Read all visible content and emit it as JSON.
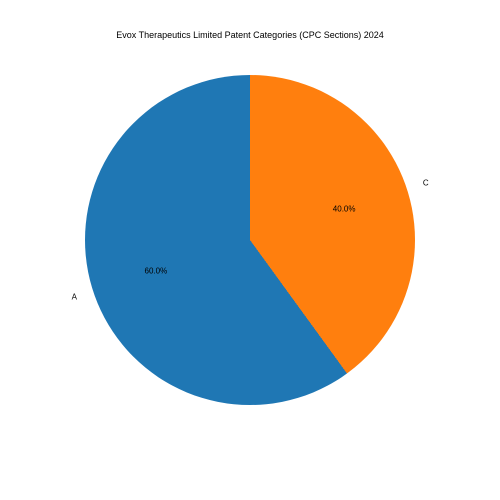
{
  "chart": {
    "type": "pie",
    "title": "Evox Therapeutics Limited Patent Categories (CPC Sections) 2024",
    "title_fontsize": 9,
    "label_fontsize": 8,
    "pct_fontsize": 8,
    "background_color": "#ffffff",
    "start_angle_deg": 90,
    "direction": "clockwise",
    "slices": [
      {
        "label": "C",
        "value": 40.0,
        "pct_text": "40.0%",
        "color": "#ff7f0e"
      },
      {
        "label": "A",
        "value": 60.0,
        "pct_text": "60.0%",
        "color": "#1f77b4"
      }
    ]
  }
}
